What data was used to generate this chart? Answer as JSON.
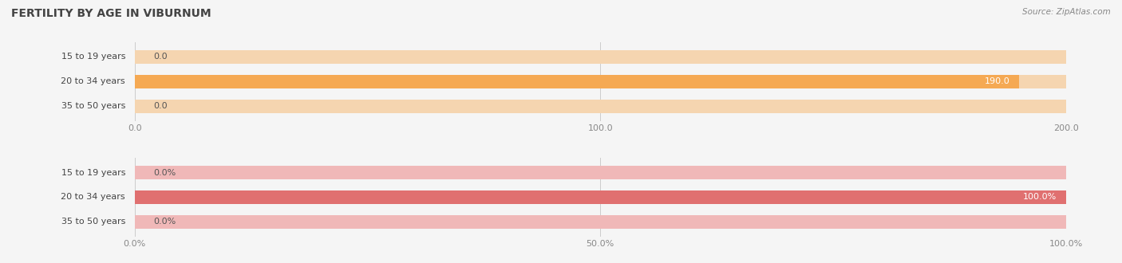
{
  "title": "FERTILITY BY AGE IN VIBURNUM",
  "source": "Source: ZipAtlas.com",
  "top_chart": {
    "categories": [
      "15 to 19 years",
      "20 to 34 years",
      "35 to 50 years"
    ],
    "values": [
      0.0,
      190.0,
      0.0
    ],
    "xlim": [
      0,
      200
    ],
    "xticks": [
      0.0,
      100.0,
      200.0
    ],
    "bar_color_full": "#F5A953",
    "bar_color_empty": "#F5D5B0",
    "label_color_inside": "#ffffff",
    "label_color_outside": "#555555"
  },
  "bottom_chart": {
    "categories": [
      "15 to 19 years",
      "20 to 34 years",
      "35 to 50 years"
    ],
    "values": [
      0.0,
      100.0,
      0.0
    ],
    "xlim": [
      0,
      100
    ],
    "xticks": [
      0.0,
      50.0,
      100.0
    ],
    "xtick_labels": [
      "0.0%",
      "50.0%",
      "100.0%"
    ],
    "bar_color_full": "#E07070",
    "bar_color_empty": "#F0B8B8",
    "label_color_inside": "#ffffff",
    "label_color_outside": "#555555"
  },
  "background_color": "#f5f5f5",
  "title_color": "#444444",
  "source_color": "#888888",
  "label_fontsize": 8,
  "tick_fontsize": 8,
  "category_fontsize": 8,
  "label_color_outside": "#555555"
}
